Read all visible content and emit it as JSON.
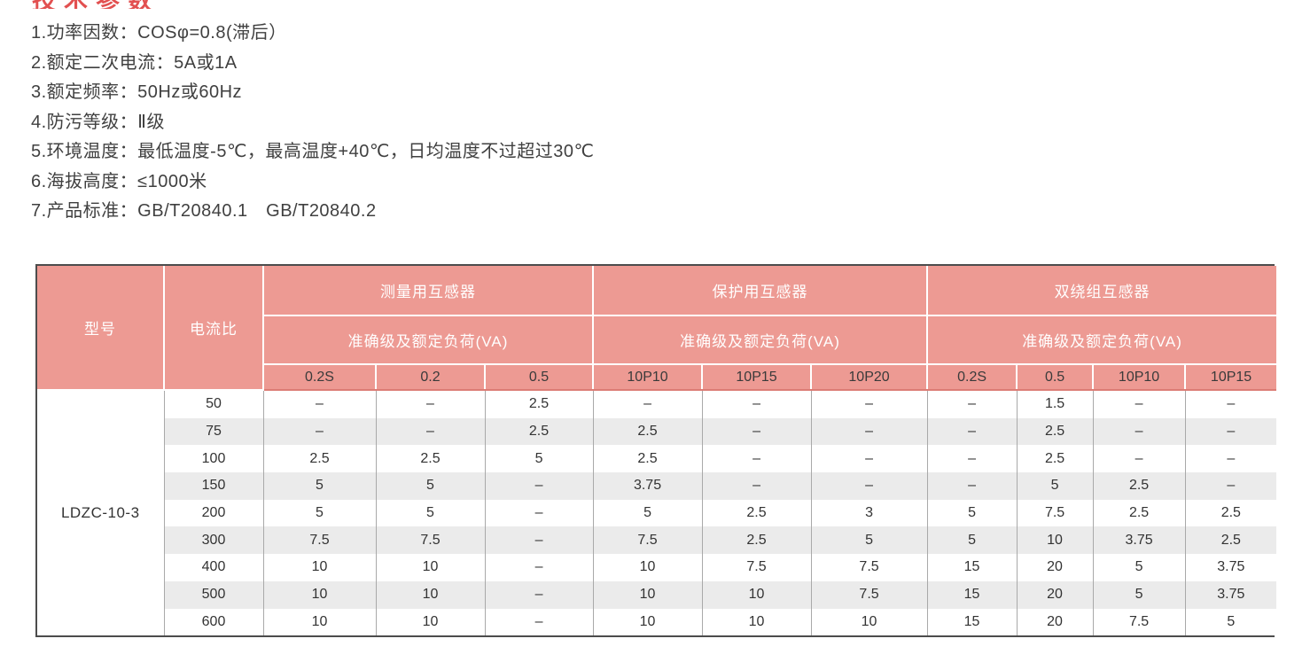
{
  "page": {
    "clipped_title": "技术参数",
    "accent_red": "#e25050",
    "header_pink": "#ed9a93",
    "alt_row_gray": "#ebebeb"
  },
  "specs": [
    "1.功率因数：COSφ=0.8(滞后）",
    "2.额定二次电流：5A或1A",
    "3.额定频率：50Hz或60Hz",
    "4.防污等级：Ⅱ级",
    "5.环境温度：最低温度-5℃，最高温度+40℃，日均温度不过超过30℃",
    "6.海拔高度：≤1000米",
    "7.产品标准：GB/T20840.1　GB/T20840.2"
  ],
  "table": {
    "header": {
      "col_model": "型号",
      "col_ratio": "电流比",
      "groups": [
        {
          "title": "测量用互感器",
          "subtitle": "准确级及额定负荷(VA)",
          "cols": [
            "0.2S",
            "0.2",
            "0.5"
          ]
        },
        {
          "title": "保护用互感器",
          "subtitle": "准确级及额定负荷(VA)",
          "cols": [
            "10P10",
            "10P15",
            "10P20"
          ]
        },
        {
          "title": "双绕组互感器",
          "subtitle": "准确级及额定负荷(VA)",
          "cols": [
            "0.2S",
            "0.5",
            "10P10",
            "10P15"
          ]
        }
      ]
    },
    "model": "LDZC-10-3",
    "rows": [
      {
        "ratio": "50",
        "values": [
          "–",
          "–",
          "2.5",
          "–",
          "–",
          "–",
          "–",
          "1.5",
          "–",
          "–"
        ]
      },
      {
        "ratio": "75",
        "values": [
          "–",
          "–",
          "2.5",
          "2.5",
          "–",
          "–",
          "–",
          "2.5",
          "–",
          "–"
        ]
      },
      {
        "ratio": "100",
        "values": [
          "2.5",
          "2.5",
          "5",
          "2.5",
          "–",
          "–",
          "–",
          "2.5",
          "–",
          "–"
        ]
      },
      {
        "ratio": "150",
        "values": [
          "5",
          "5",
          "–",
          "3.75",
          "–",
          "–",
          "–",
          "5",
          "2.5",
          "–"
        ]
      },
      {
        "ratio": "200",
        "values": [
          "5",
          "5",
          "–",
          "5",
          "2.5",
          "3",
          "5",
          "7.5",
          "2.5",
          "2.5"
        ]
      },
      {
        "ratio": "300",
        "values": [
          "7.5",
          "7.5",
          "–",
          "7.5",
          "2.5",
          "5",
          "5",
          "10",
          "3.75",
          "2.5"
        ]
      },
      {
        "ratio": "400",
        "values": [
          "10",
          "10",
          "–",
          "10",
          "7.5",
          "7.5",
          "15",
          "20",
          "5",
          "3.75"
        ]
      },
      {
        "ratio": "500",
        "values": [
          "10",
          "10",
          "–",
          "10",
          "10",
          "7.5",
          "15",
          "20",
          "5",
          "3.75"
        ]
      },
      {
        "ratio": "600",
        "values": [
          "10",
          "10",
          "–",
          "10",
          "10",
          "10",
          "15",
          "20",
          "7.5",
          "5"
        ]
      }
    ]
  }
}
